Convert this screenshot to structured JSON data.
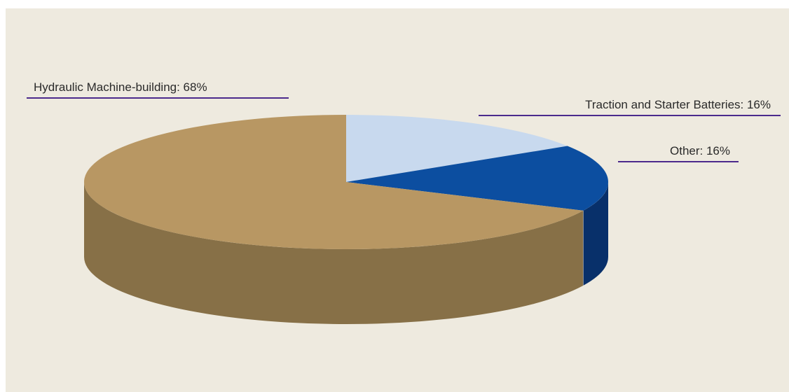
{
  "chart_data": {
    "type": "pie",
    "categories": [
      "Hydraulic Machine-building",
      "Traction and Starter Batteries",
      "Other"
    ],
    "values": [
      68,
      16,
      16
    ],
    "labels": [
      "Hydraulic Machine-building: 68%",
      "Traction and Starter Batteries: 16%",
      "Other: 16%"
    ],
    "colors": {
      "hydraulic_top": "#b89763",
      "hydraulic_side": "#877047",
      "traction_top": "#c8d9ee",
      "traction_side": "#a5a8ad",
      "other_top": "#0c4ea0",
      "other_side": "#08306a",
      "leader_line": "#4b2a8c",
      "background": "#eeeadf"
    },
    "style": "3d",
    "legend": "none"
  }
}
